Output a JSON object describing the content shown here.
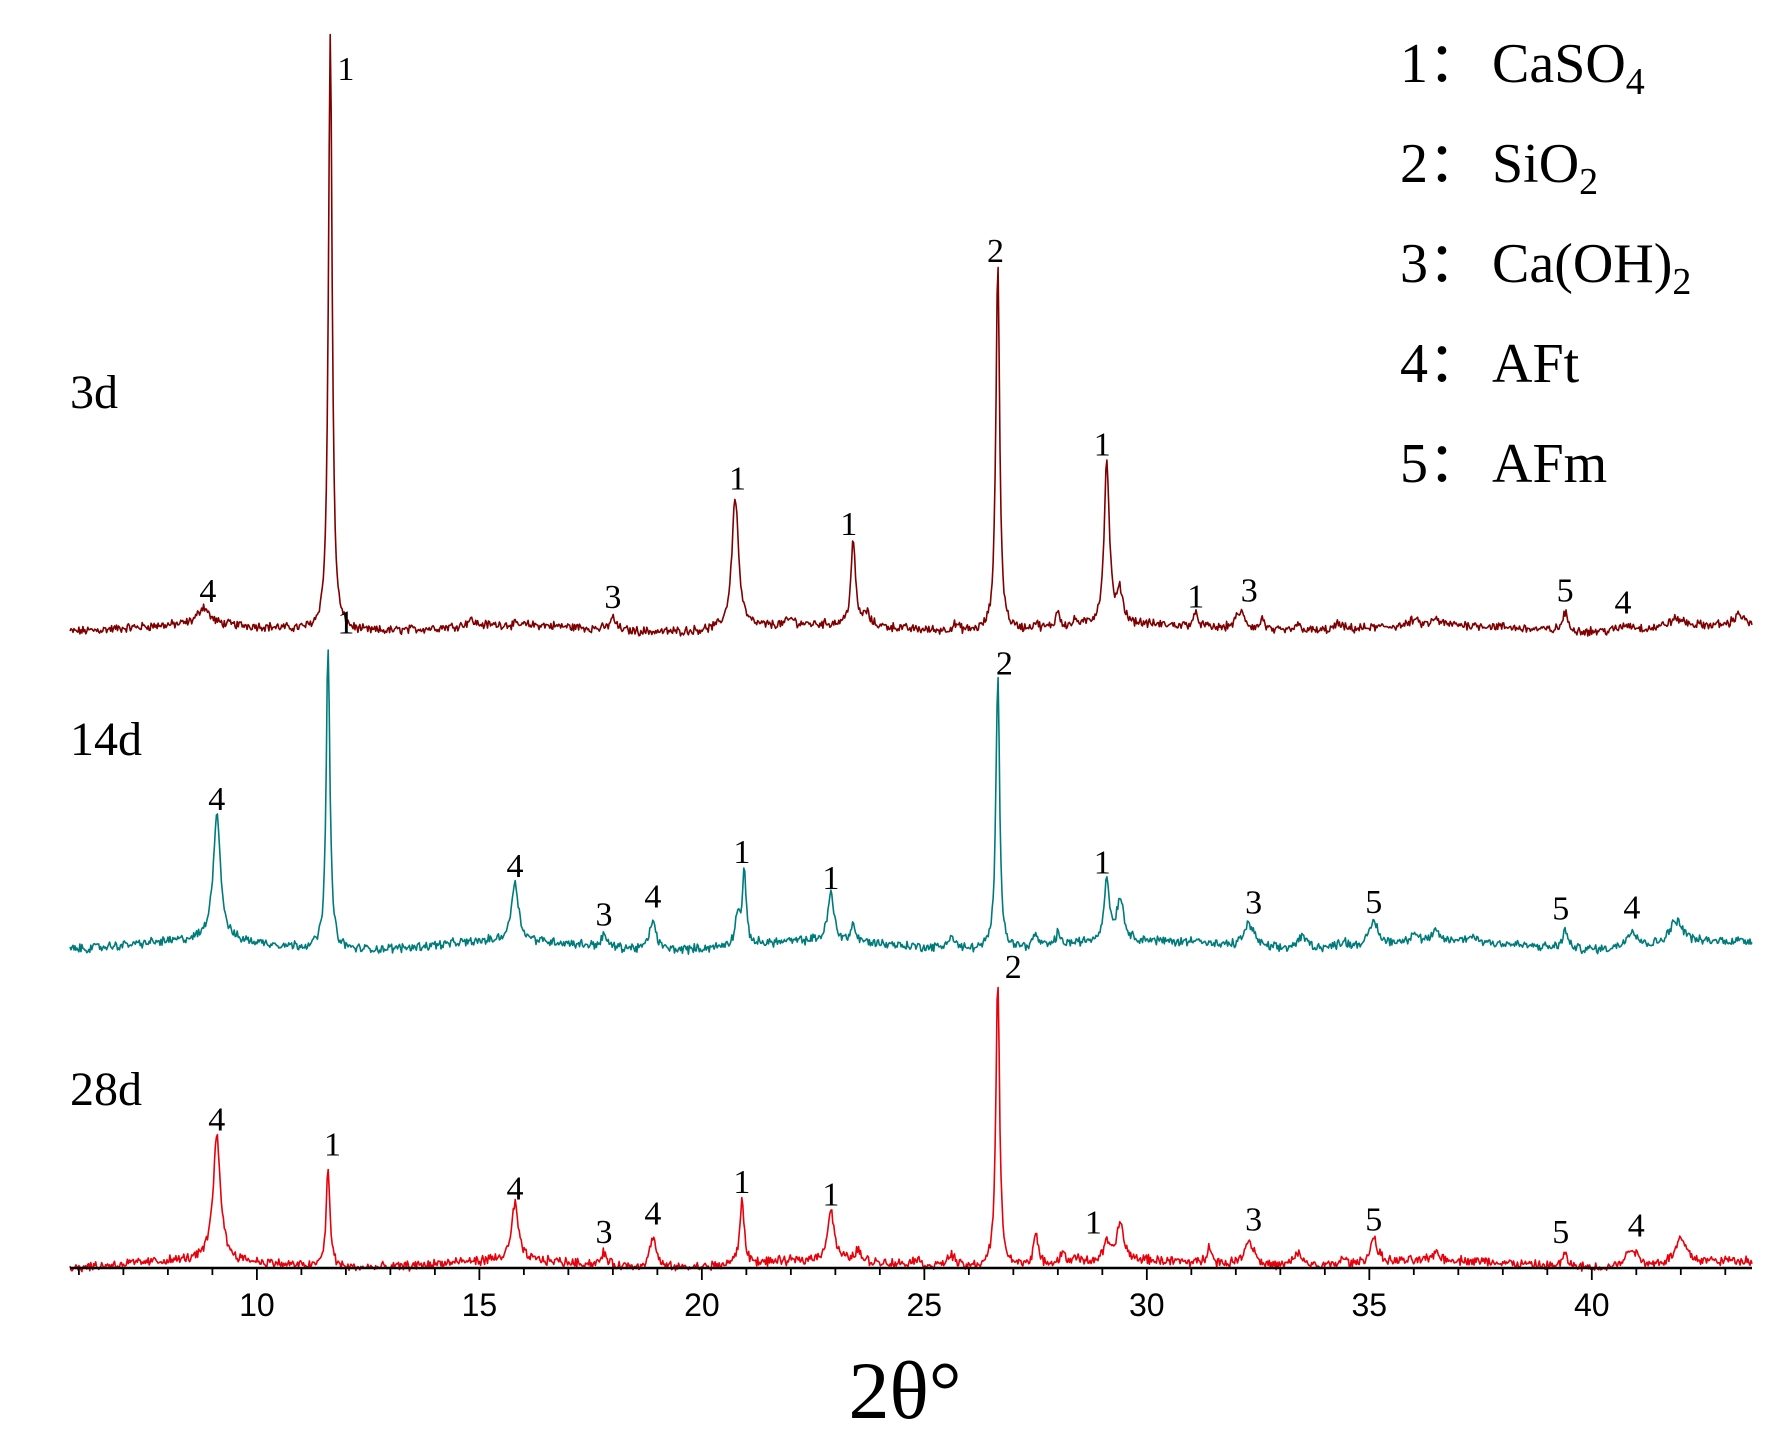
{
  "chart_data": {
    "type": "line",
    "title": "",
    "xlabel": "2θ°",
    "ylabel": "",
    "xlim": [
      5.8,
      43.6
    ],
    "x_ticks": [
      10,
      15,
      20,
      25,
      30,
      35,
      40
    ],
    "grid": false,
    "legend": {
      "position": "top-right",
      "entries": [
        {
          "num": "1",
          "sep": "：",
          "name": "CaSO",
          "sub": "4"
        },
        {
          "num": "2",
          "sep": "：",
          "name": "SiO",
          "sub": "2"
        },
        {
          "num": "3",
          "sep": "：",
          "name": "Ca(OH)",
          "sub": "2"
        },
        {
          "num": "4",
          "sep": "：",
          "name": "AFt",
          "sub": ""
        },
        {
          "num": "5",
          "sep": "：",
          "name": "AFm",
          "sub": ""
        }
      ]
    },
    "series": [
      {
        "name": "3d",
        "color": "#7f0000",
        "baseline": 0.04,
        "peaks": [
          {
            "x": 8.8,
            "h": 0.03,
            "w": 0.15
          },
          {
            "x": 11.65,
            "h": 1.0,
            "w": 0.05
          },
          {
            "x": 14.8,
            "h": 0.01,
            "w": 0.1
          },
          {
            "x": 18.0,
            "h": 0.02,
            "w": 0.08
          },
          {
            "x": 20.75,
            "h": 0.22,
            "w": 0.09
          },
          {
            "x": 22.0,
            "h": 0.01,
            "w": 0.1
          },
          {
            "x": 23.4,
            "h": 0.14,
            "w": 0.06
          },
          {
            "x": 23.7,
            "h": 0.02,
            "w": 0.08
          },
          {
            "x": 25.7,
            "h": 0.01,
            "w": 0.1
          },
          {
            "x": 26.65,
            "h": 0.62,
            "w": 0.05
          },
          {
            "x": 27.5,
            "h": 0.01,
            "w": 0.06
          },
          {
            "x": 28.0,
            "h": 0.03,
            "w": 0.05
          },
          {
            "x": 28.4,
            "h": 0.01,
            "w": 0.05
          },
          {
            "x": 29.1,
            "h": 0.27,
            "w": 0.07
          },
          {
            "x": 29.4,
            "h": 0.05,
            "w": 0.08
          },
          {
            "x": 31.1,
            "h": 0.02,
            "w": 0.08
          },
          {
            "x": 32.1,
            "h": 0.03,
            "w": 0.13
          },
          {
            "x": 32.6,
            "h": 0.02,
            "w": 0.06
          },
          {
            "x": 33.4,
            "h": 0.01,
            "w": 0.12
          },
          {
            "x": 34.3,
            "h": 0.01,
            "w": 0.1
          },
          {
            "x": 36.0,
            "h": 0.01,
            "w": 0.08
          },
          {
            "x": 36.5,
            "h": 0.01,
            "w": 0.08
          },
          {
            "x": 39.4,
            "h": 0.03,
            "w": 0.07
          },
          {
            "x": 40.8,
            "h": 0.01,
            "w": 0.2
          },
          {
            "x": 41.9,
            "h": 0.015,
            "w": 0.25
          },
          {
            "x": 43.3,
            "h": 0.02,
            "w": 0.1
          }
        ],
        "annotations": [
          {
            "x": 8.9,
            "label": "4"
          },
          {
            "x": 12.0,
            "label": "1"
          },
          {
            "x": 18.0,
            "label": "3"
          },
          {
            "x": 20.8,
            "label": "1"
          },
          {
            "x": 23.3,
            "label": "1"
          },
          {
            "x": 26.6,
            "label": "2"
          },
          {
            "x": 29.0,
            "label": "1"
          },
          {
            "x": 31.1,
            "label": "1"
          },
          {
            "x": 32.3,
            "label": "3"
          },
          {
            "x": 39.4,
            "label": "5"
          },
          {
            "x": 40.7,
            "label": "4"
          }
        ]
      },
      {
        "name": "14d",
        "color": "#007b7b",
        "baseline": 0.05,
        "peaks": [
          {
            "x": 9.1,
            "h": 0.21,
            "w": 0.1
          },
          {
            "x": 11.6,
            "h": 0.5,
            "w": 0.05
          },
          {
            "x": 15.8,
            "h": 0.1,
            "w": 0.09
          },
          {
            "x": 17.8,
            "h": 0.02,
            "w": 0.07
          },
          {
            "x": 18.9,
            "h": 0.05,
            "w": 0.08
          },
          {
            "x": 20.8,
            "h": 0.05,
            "w": 0.06
          },
          {
            "x": 20.95,
            "h": 0.12,
            "w": 0.05
          },
          {
            "x": 22.9,
            "h": 0.08,
            "w": 0.08
          },
          {
            "x": 23.4,
            "h": 0.03,
            "w": 0.05
          },
          {
            "x": 25.6,
            "h": 0.02,
            "w": 0.1
          },
          {
            "x": 26.65,
            "h": 0.45,
            "w": 0.05
          },
          {
            "x": 27.5,
            "h": 0.02,
            "w": 0.06
          },
          {
            "x": 28.0,
            "h": 0.02,
            "w": 0.05
          },
          {
            "x": 29.1,
            "h": 0.1,
            "w": 0.07
          },
          {
            "x": 29.4,
            "h": 0.07,
            "w": 0.09
          },
          {
            "x": 31.1,
            "h": 0.01,
            "w": 0.1
          },
          {
            "x": 32.3,
            "h": 0.04,
            "w": 0.15
          },
          {
            "x": 33.5,
            "h": 0.02,
            "w": 0.15
          },
          {
            "x": 34.4,
            "h": 0.01,
            "w": 0.1
          },
          {
            "x": 35.1,
            "h": 0.04,
            "w": 0.1
          },
          {
            "x": 36.0,
            "h": 0.015,
            "w": 0.08
          },
          {
            "x": 36.5,
            "h": 0.015,
            "w": 0.08
          },
          {
            "x": 37.3,
            "h": 0.01,
            "w": 0.1
          },
          {
            "x": 39.4,
            "h": 0.03,
            "w": 0.07
          },
          {
            "x": 40.9,
            "h": 0.03,
            "w": 0.15
          },
          {
            "x": 41.9,
            "h": 0.04,
            "w": 0.2
          }
        ],
        "annotations": [
          {
            "x": 9.1,
            "label": "4"
          },
          {
            "x": 12.0,
            "label": "1"
          },
          {
            "x": 15.8,
            "label": "4"
          },
          {
            "x": 17.8,
            "label": "3"
          },
          {
            "x": 18.9,
            "label": "4"
          },
          {
            "x": 20.9,
            "label": "1"
          },
          {
            "x": 22.9,
            "label": "1"
          },
          {
            "x": 26.8,
            "label": "2"
          },
          {
            "x": 29.0,
            "label": "1"
          },
          {
            "x": 32.4,
            "label": "3"
          },
          {
            "x": 35.1,
            "label": "5"
          },
          {
            "x": 39.3,
            "label": "5"
          },
          {
            "x": 40.9,
            "label": "4"
          }
        ]
      },
      {
        "name": "28d",
        "color": "#e8000b",
        "baseline": 0.04,
        "peaks": [
          {
            "x": 9.1,
            "h": 0.2,
            "w": 0.1
          },
          {
            "x": 11.6,
            "h": 0.16,
            "w": 0.05
          },
          {
            "x": 15.8,
            "h": 0.09,
            "w": 0.09
          },
          {
            "x": 17.8,
            "h": 0.02,
            "w": 0.07
          },
          {
            "x": 18.9,
            "h": 0.05,
            "w": 0.08
          },
          {
            "x": 20.9,
            "h": 0.1,
            "w": 0.06
          },
          {
            "x": 22.9,
            "h": 0.08,
            "w": 0.09
          },
          {
            "x": 23.5,
            "h": 0.02,
            "w": 0.06
          },
          {
            "x": 24.8,
            "h": 0.01,
            "w": 0.1
          },
          {
            "x": 25.6,
            "h": 0.02,
            "w": 0.1
          },
          {
            "x": 26.65,
            "h": 0.46,
            "w": 0.05
          },
          {
            "x": 27.5,
            "h": 0.05,
            "w": 0.06
          },
          {
            "x": 28.1,
            "h": 0.02,
            "w": 0.05
          },
          {
            "x": 28.4,
            "h": 0.01,
            "w": 0.05
          },
          {
            "x": 29.1,
            "h": 0.03,
            "w": 0.07
          },
          {
            "x": 29.4,
            "h": 0.06,
            "w": 0.09
          },
          {
            "x": 31.4,
            "h": 0.03,
            "w": 0.06
          },
          {
            "x": 32.3,
            "h": 0.04,
            "w": 0.15
          },
          {
            "x": 33.4,
            "h": 0.02,
            "w": 0.15
          },
          {
            "x": 34.4,
            "h": 0.01,
            "w": 0.1
          },
          {
            "x": 35.1,
            "h": 0.04,
            "w": 0.1
          },
          {
            "x": 36.5,
            "h": 0.015,
            "w": 0.08
          },
          {
            "x": 39.4,
            "h": 0.02,
            "w": 0.07
          },
          {
            "x": 40.9,
            "h": 0.03,
            "w": 0.15
          },
          {
            "x": 42.0,
            "h": 0.04,
            "w": 0.15
          }
        ],
        "annotations": [
          {
            "x": 9.1,
            "label": "4"
          },
          {
            "x": 11.7,
            "label": "1"
          },
          {
            "x": 15.8,
            "label": "4"
          },
          {
            "x": 17.8,
            "label": "3"
          },
          {
            "x": 18.9,
            "label": "4"
          },
          {
            "x": 20.9,
            "label": "1"
          },
          {
            "x": 22.9,
            "label": "1"
          },
          {
            "x": 27.0,
            "label": "2"
          },
          {
            "x": 28.8,
            "label": "1"
          },
          {
            "x": 32.4,
            "label": "3"
          },
          {
            "x": 35.1,
            "label": "5"
          },
          {
            "x": 39.3,
            "label": "5"
          },
          {
            "x": 41.0,
            "label": "4"
          }
        ]
      }
    ]
  }
}
